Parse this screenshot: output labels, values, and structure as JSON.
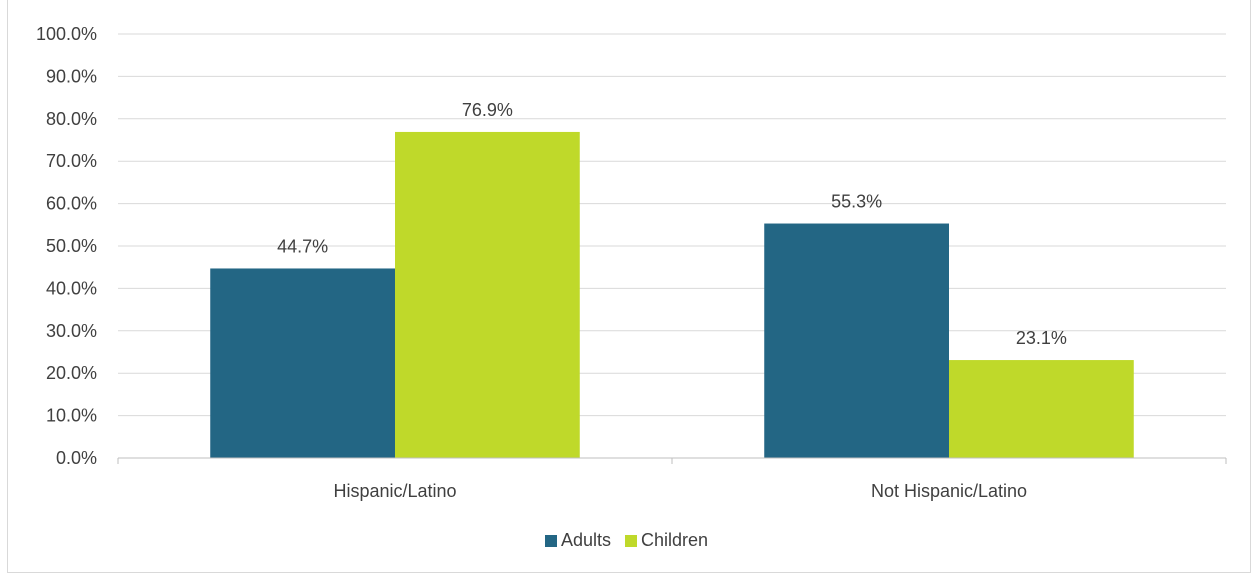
{
  "colors": {
    "adults": "#236684",
    "children": "#bfd92a",
    "grid": "#d9d9d9",
    "axis": "#bfbfbf",
    "text": "#404040"
  },
  "chart_data": {
    "type": "bar",
    "categories": [
      "Hispanic/Latino",
      "Not Hispanic/Latino"
    ],
    "series": [
      {
        "name": "Adults",
        "values": [
          44.7,
          55.3
        ],
        "labels": [
          "44.7%",
          "55.3%"
        ]
      },
      {
        "name": "Children",
        "values": [
          76.9,
          23.1
        ],
        "labels": [
          "76.9%",
          "23.1%"
        ]
      }
    ],
    "yticks": [
      "0.0%",
      "10.0%",
      "20.0%",
      "30.0%",
      "40.0%",
      "50.0%",
      "60.0%",
      "70.0%",
      "80.0%",
      "90.0%",
      "100.0%"
    ],
    "ylim": [
      0,
      100
    ],
    "grid": true,
    "legend_position": "bottom"
  }
}
